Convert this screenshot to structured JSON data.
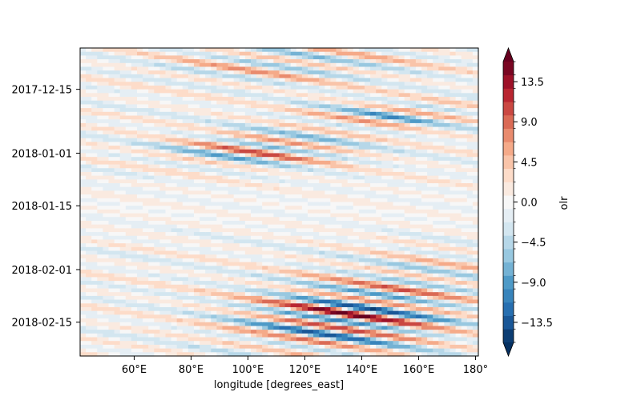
{
  "chart_data": {
    "type": "heatmap",
    "variable": "olr",
    "xlabel": "longitude [degrees_east]",
    "ylabel": "",
    "title": "",
    "x_range": [
      41,
      181
    ],
    "y_range": [
      "2017-12-04",
      "2018-02-24"
    ],
    "x_ticks": [
      {
        "value": 60,
        "label": "60°E"
      },
      {
        "value": 80,
        "label": "80°E"
      },
      {
        "value": 100,
        "label": "100°E"
      },
      {
        "value": 120,
        "label": "120°E"
      },
      {
        "value": 140,
        "label": "140°E"
      },
      {
        "value": 160,
        "label": "160°E"
      },
      {
        "value": 180,
        "label": "180°"
      }
    ],
    "y_ticks": [
      {
        "value": "2017-12-15",
        "label": "2017-12-15"
      },
      {
        "value": "2018-01-01",
        "label": "2018-01-01"
      },
      {
        "value": "2018-01-15",
        "label": "2018-01-15"
      },
      {
        "value": "2018-02-01",
        "label": "2018-02-01"
      },
      {
        "value": "2018-02-15",
        "label": "2018-02-15"
      }
    ],
    "colorbar": {
      "label": "olr",
      "min": -15.75,
      "max": 15.75,
      "step": 1.5,
      "extend": "both",
      "cmap": "RdBu_r",
      "ticks": [
        {
          "value": 13.5,
          "label": "13.5"
        },
        {
          "value": 9.0,
          "label": "9.0"
        },
        {
          "value": 4.5,
          "label": "4.5"
        },
        {
          "value": 0.0,
          "label": "0.0"
        },
        {
          "value": -4.5,
          "label": "−4.5"
        },
        {
          "value": -9.0,
          "label": "−9.0"
        },
        {
          "value": -13.5,
          "label": "−13.5"
        }
      ]
    },
    "grid": false
  }
}
